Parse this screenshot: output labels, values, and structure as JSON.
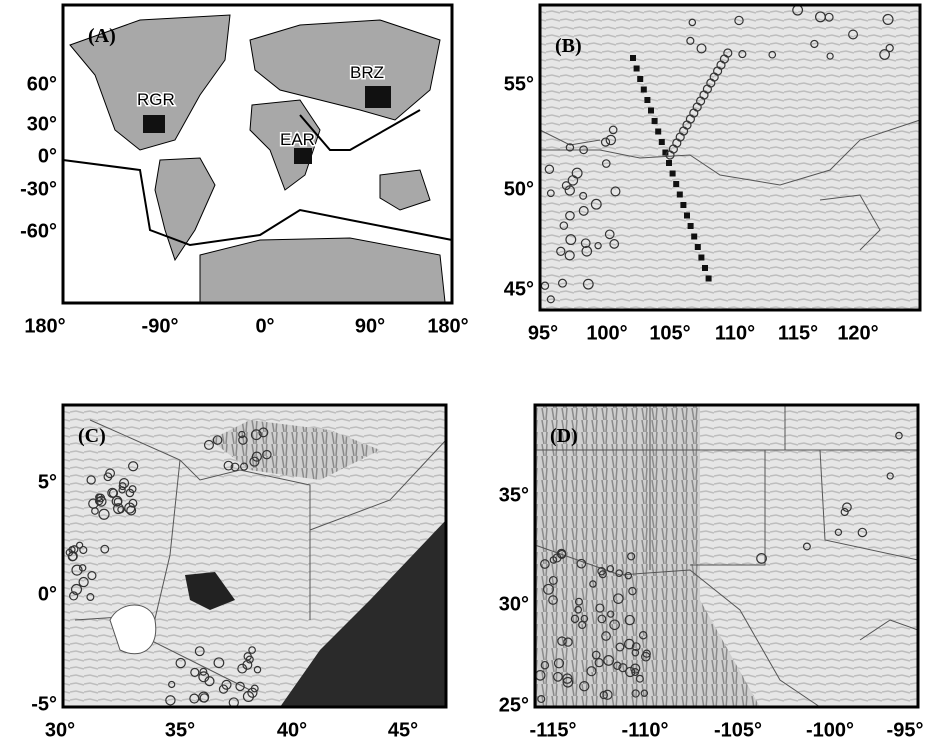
{
  "panels": [
    {
      "label": "(A)",
      "xticks": [
        "180°",
        "-90°",
        "0°",
        "90°",
        "180°"
      ],
      "yticks": [
        "60°",
        "30°",
        "0°",
        "-30°",
        "-60°"
      ],
      "regions": [
        "RGR",
        "EAR",
        "BRZ"
      ]
    },
    {
      "label": "(B)",
      "xticks": [
        "95°",
        "100°",
        "105°",
        "110°",
        "115°",
        "120°"
      ],
      "yticks": [
        "55°",
        "50°",
        "45°"
      ]
    },
    {
      "label": "(C)",
      "xticks": [
        "30°",
        "35°",
        "40°",
        "45°"
      ],
      "yticks": [
        "5°",
        "0°",
        "-5°"
      ]
    },
    {
      "label": "(D)",
      "xticks": [
        "-115°",
        "-110°",
        "-105°",
        "-100°",
        "-95°"
      ],
      "yticks": [
        "35°",
        "30°",
        "25°"
      ]
    }
  ]
}
